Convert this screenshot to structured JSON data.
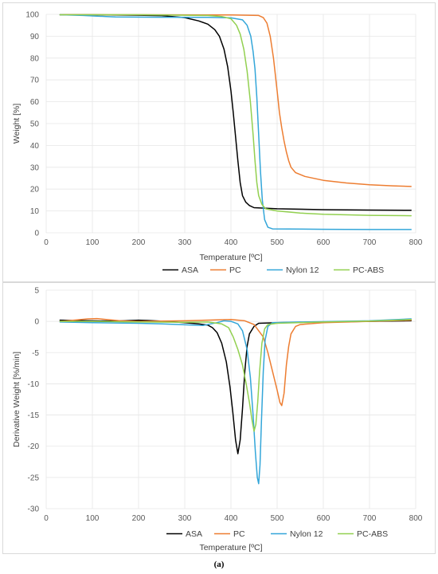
{
  "caption": "(a)",
  "chart_data": [
    {
      "type": "line",
      "xlabel": "Temperature [ºC]",
      "ylabel": "Weight [%]",
      "xlim": [
        0,
        800
      ],
      "ylim": [
        0,
        100
      ],
      "x_ticks": [
        0,
        100,
        200,
        300,
        400,
        500,
        600,
        700,
        800
      ],
      "y_ticks": [
        0,
        10,
        20,
        30,
        40,
        50,
        60,
        70,
        80,
        90,
        100
      ],
      "grid": true,
      "legend_position": "bottom",
      "series": [
        {
          "name": "ASA",
          "color": "#000000",
          "points": [
            [
              30,
              99.8
            ],
            [
              100,
              99.8
            ],
            [
              200,
              99.6
            ],
            [
              250,
              99.4
            ],
            [
              300,
              98.5
            ],
            [
              330,
              97
            ],
            [
              350,
              95.5
            ],
            [
              365,
              93
            ],
            [
              375,
              90
            ],
            [
              385,
              84
            ],
            [
              393,
              76
            ],
            [
              400,
              65
            ],
            [
              405,
              55
            ],
            [
              410,
              44
            ],
            [
              415,
              33
            ],
            [
              420,
              23
            ],
            [
              425,
              17
            ],
            [
              432,
              14
            ],
            [
              440,
              12.5
            ],
            [
              450,
              11.5
            ],
            [
              500,
              11
            ],
            [
              600,
              10.6
            ],
            [
              700,
              10.4
            ],
            [
              790,
              10.3
            ]
          ]
        },
        {
          "name": "PC",
          "color": "#ED7D31",
          "points": [
            [
              30,
              99.8
            ],
            [
              200,
              99.8
            ],
            [
              400,
              99.7
            ],
            [
              460,
              99.5
            ],
            [
              470,
              98.5
            ],
            [
              478,
              96
            ],
            [
              485,
              90
            ],
            [
              492,
              80
            ],
            [
              500,
              65
            ],
            [
              505,
              55
            ],
            [
              510,
              48
            ],
            [
              515,
              42
            ],
            [
              520,
              37
            ],
            [
              525,
              33
            ],
            [
              530,
              30
            ],
            [
              540,
              27.5
            ],
            [
              560,
              25.8
            ],
            [
              600,
              24
            ],
            [
              650,
              22.8
            ],
            [
              700,
              22
            ],
            [
              750,
              21.5
            ],
            [
              790,
              21.2
            ]
          ]
        },
        {
          "name": "Nylon 12",
          "color": "#33A6D9",
          "points": [
            [
              30,
              99.8
            ],
            [
              80,
              99.5
            ],
            [
              110,
              99.2
            ],
            [
              130,
              99
            ],
            [
              150,
              98.8
            ],
            [
              250,
              98.7
            ],
            [
              350,
              98.6
            ],
            [
              400,
              98.4
            ],
            [
              425,
              97.5
            ],
            [
              435,
              95
            ],
            [
              443,
              90
            ],
            [
              448,
              83
            ],
            [
              452,
              75
            ],
            [
              456,
              62
            ],
            [
              460,
              45
            ],
            [
              464,
              28
            ],
            [
              468,
              15
            ],
            [
              473,
              6
            ],
            [
              480,
              2.5
            ],
            [
              490,
              1.8
            ],
            [
              600,
              1.6
            ],
            [
              700,
              1.5
            ],
            [
              790,
              1.5
            ]
          ]
        },
        {
          "name": "PC-ABS",
          "color": "#92D050",
          "points": [
            [
              30,
              99.8
            ],
            [
              200,
              99.8
            ],
            [
              350,
              99.5
            ],
            [
              380,
              99
            ],
            [
              400,
              98
            ],
            [
              412,
              95
            ],
            [
              420,
              91
            ],
            [
              428,
              84
            ],
            [
              435,
              74
            ],
            [
              442,
              60
            ],
            [
              448,
              45
            ],
            [
              452,
              33
            ],
            [
              456,
              23
            ],
            [
              460,
              17
            ],
            [
              467,
              13
            ],
            [
              475,
              11
            ],
            [
              500,
              10
            ],
            [
              550,
              9
            ],
            [
              600,
              8.5
            ],
            [
              700,
              8
            ],
            [
              790,
              7.8
            ]
          ]
        }
      ]
    },
    {
      "type": "line",
      "xlabel": "Temperature [ºC]",
      "ylabel": "Derivative Weight [%/min]",
      "xlim": [
        0,
        800
      ],
      "ylim": [
        -30,
        5
      ],
      "x_ticks": [
        0,
        100,
        200,
        300,
        400,
        500,
        600,
        700,
        800
      ],
      "y_ticks": [
        -30,
        -25,
        -20,
        -15,
        -10,
        -5,
        0,
        5
      ],
      "grid": true,
      "legend_position": "bottom",
      "series": [
        {
          "name": "ASA",
          "color": "#000000",
          "points": [
            [
              30,
              0.2
            ],
            [
              100,
              0.1
            ],
            [
              150,
              0.05
            ],
            [
              200,
              0.2
            ],
            [
              220,
              0.15
            ],
            [
              260,
              0
            ],
            [
              300,
              -0.2
            ],
            [
              330,
              -0.4
            ],
            [
              350,
              -0.6
            ],
            [
              360,
              -1
            ],
            [
              370,
              -1.8
            ],
            [
              380,
              -3.5
            ],
            [
              390,
              -6.5
            ],
            [
              398,
              -10.5
            ],
            [
              404,
              -14.5
            ],
            [
              410,
              -19
            ],
            [
              415,
              -21.2
            ],
            [
              420,
              -19
            ],
            [
              425,
              -14
            ],
            [
              430,
              -8
            ],
            [
              435,
              -4
            ],
            [
              440,
              -2
            ],
            [
              450,
              -0.8
            ],
            [
              460,
              -0.3
            ],
            [
              500,
              -0.2
            ],
            [
              600,
              -0.1
            ],
            [
              700,
              0
            ],
            [
              790,
              0.1
            ]
          ]
        },
        {
          "name": "PC",
          "color": "#ED7D31",
          "points": [
            [
              30,
              0
            ],
            [
              60,
              0.2
            ],
            [
              90,
              0.4
            ],
            [
              110,
              0.45
            ],
            [
              130,
              0.3
            ],
            [
              160,
              0.1
            ],
            [
              200,
              0
            ],
            [
              300,
              0.1
            ],
            [
              400,
              0.3
            ],
            [
              430,
              0.1
            ],
            [
              450,
              -0.5
            ],
            [
              470,
              -2.5
            ],
            [
              480,
              -5
            ],
            [
              490,
              -8
            ],
            [
              500,
              -11
            ],
            [
              506,
              -13
            ],
            [
              510,
              -13.5
            ],
            [
              515,
              -11.5
            ],
            [
              520,
              -7
            ],
            [
              525,
              -4
            ],
            [
              530,
              -2
            ],
            [
              540,
              -0.8
            ],
            [
              550,
              -0.5
            ],
            [
              600,
              -0.2
            ],
            [
              700,
              0
            ],
            [
              790,
              0.2
            ]
          ]
        },
        {
          "name": "Nylon 12",
          "color": "#33A6D9",
          "points": [
            [
              30,
              -0.1
            ],
            [
              100,
              -0.2
            ],
            [
              150,
              -0.25
            ],
            [
              200,
              -0.3
            ],
            [
              250,
              -0.4
            ],
            [
              300,
              -0.55
            ],
            [
              340,
              -0.65
            ],
            [
              370,
              -0.2
            ],
            [
              385,
              0.1
            ],
            [
              400,
              0
            ],
            [
              415,
              -0.4
            ],
            [
              425,
              -1.5
            ],
            [
              435,
              -4.5
            ],
            [
              442,
              -9
            ],
            [
              448,
              -15
            ],
            [
              453,
              -21
            ],
            [
              457,
              -25
            ],
            [
              460,
              -26
            ],
            [
              463,
              -23
            ],
            [
              466,
              -16
            ],
            [
              470,
              -8
            ],
            [
              474,
              -3
            ],
            [
              480,
              -0.8
            ],
            [
              490,
              -0.2
            ],
            [
              550,
              -0.1
            ],
            [
              700,
              0.1
            ],
            [
              790,
              0.4
            ]
          ]
        },
        {
          "name": "PC-ABS",
          "color": "#92D050",
          "points": [
            [
              30,
              0
            ],
            [
              100,
              0
            ],
            [
              200,
              -0.1
            ],
            [
              300,
              -0.15
            ],
            [
              350,
              -0.1
            ],
            [
              380,
              -0.4
            ],
            [
              395,
              -1
            ],
            [
              405,
              -2.5
            ],
            [
              415,
              -4.5
            ],
            [
              425,
              -7
            ],
            [
              433,
              -10
            ],
            [
              440,
              -13
            ],
            [
              446,
              -16
            ],
            [
              450,
              -17.6
            ],
            [
              454,
              -16.5
            ],
            [
              458,
              -13
            ],
            [
              462,
              -8
            ],
            [
              467,
              -3.5
            ],
            [
              473,
              -1.2
            ],
            [
              480,
              -0.5
            ],
            [
              500,
              -0.3
            ],
            [
              600,
              -0.1
            ],
            [
              700,
              0.05
            ],
            [
              790,
              0.3
            ]
          ]
        }
      ]
    }
  ]
}
